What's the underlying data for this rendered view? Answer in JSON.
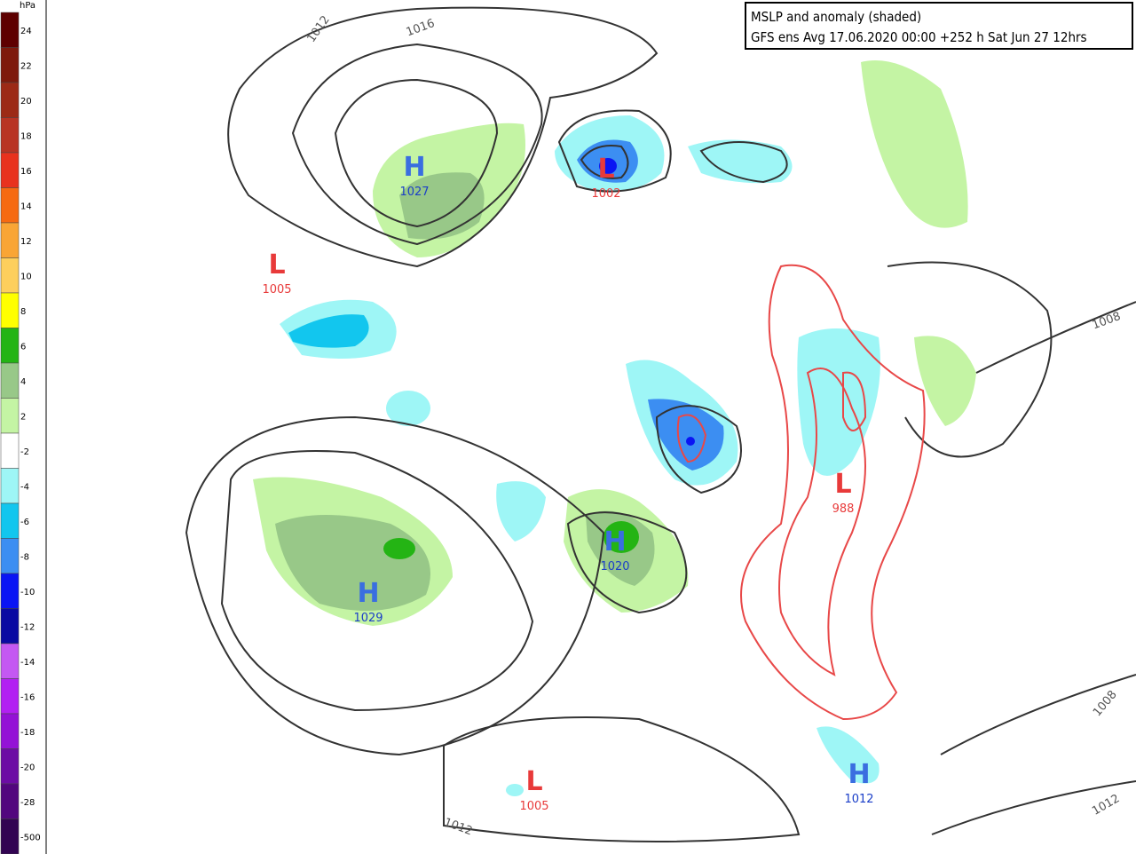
{
  "legend": {
    "unit": "hPa",
    "labels": [
      "24",
      "22",
      "20",
      "18",
      "16",
      "14",
      "12",
      "10",
      "8",
      "6",
      "4",
      "2",
      "-2",
      "-4",
      "-6",
      "-8",
      "-10",
      "-12",
      "-14",
      "-16",
      "-18",
      "-20",
      "-28",
      "-500"
    ],
    "colors": [
      "#5e0000",
      "#7e1a0c",
      "#9c2a16",
      "#b83424",
      "#e8321e",
      "#f66a12",
      "#f9a535",
      "#fdcf5c",
      "#ffff00",
      "#24b414",
      "#98c888",
      "#c4f4a4",
      "#ffffff",
      "#9ef6f6",
      "#12c6ee",
      "#3c8ef2",
      "#0a14f4",
      "#0a0aa2",
      "#c458f2",
      "#b220f2",
      "#9412d6",
      "#6c0ca4",
      "#52067e",
      "#320452"
    ]
  },
  "header": {
    "title": "MSLP and anomaly (shaded)",
    "subtitle": "GFS ens Avg 17.06.2020 00:00 +252 h Sat Jun 27 12hrs"
  },
  "centers": [
    {
      "kind": "H",
      "value": "1027"
    },
    {
      "kind": "L",
      "value": "1002"
    },
    {
      "kind": "L",
      "value": "1005"
    },
    {
      "kind": "H",
      "value": "1029"
    },
    {
      "kind": "H",
      "value": "1020"
    },
    {
      "kind": "L",
      "value": "988"
    },
    {
      "kind": "L",
      "value": "1005"
    },
    {
      "kind": "H",
      "value": "1012"
    }
  ],
  "isobar_labels": [
    "1012",
    "1016",
    "1008",
    "1008",
    "1012",
    "1012"
  ]
}
